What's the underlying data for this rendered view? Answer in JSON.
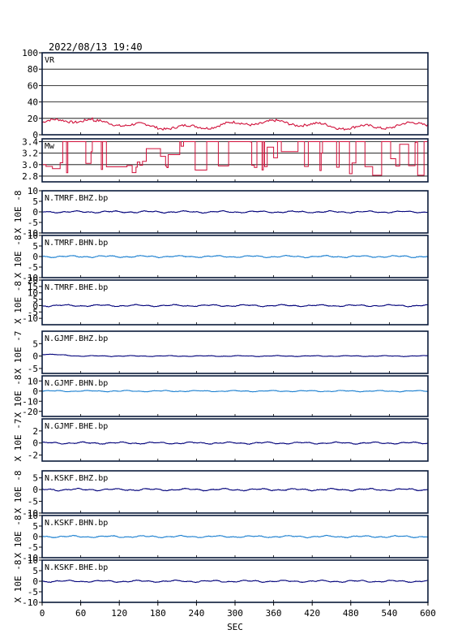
{
  "header": {
    "datetime": "2022/08/13  19:40"
  },
  "chart_data": {
    "type": "line",
    "xlabel": "SEC",
    "xlim": [
      0,
      600
    ],
    "xticks": [
      0,
      60,
      120,
      180,
      240,
      300,
      360,
      420,
      480,
      540,
      600
    ],
    "panels": [
      {
        "name": "VR",
        "ylim": [
          0,
          100
        ],
        "yticks": [
          0,
          20,
          40,
          60,
          80,
          100
        ],
        "ylabel": "",
        "grid": true,
        "color": "#d0103a",
        "kind": "vr",
        "center": 12
      },
      {
        "name": "Mw",
        "ylim": [
          2.7,
          3.45
        ],
        "yticks": [
          2.8,
          3.0,
          3.2,
          3.4
        ],
        "ytick_labels": [
          "2.8",
          "3.0",
          "3.2",
          "3.4"
        ],
        "ylabel": "",
        "grid": true,
        "color": "#d0103a",
        "kind": "step"
      },
      {
        "name": "N.TMRF.BHZ.bp",
        "ylim": [
          -10,
          10
        ],
        "yticks": [
          -10,
          -5,
          0,
          5,
          10
        ],
        "ylabel": "X 10E -8",
        "grid": false,
        "color": "#00007a",
        "kind": "wave",
        "amp": 0.5
      },
      {
        "name": "N.TMRF.BHN.bp",
        "ylim": [
          -10,
          10
        ],
        "yticks": [
          -10,
          -5,
          0,
          5,
          10
        ],
        "ylabel": "X 10E -8",
        "grid": false,
        "color": "#1a7fd0",
        "kind": "wave",
        "amp": 0.5
      },
      {
        "name": "N.TMRF.BHE.bp",
        "ylim": [
          -15,
          20
        ],
        "yticks": [
          -10,
          -5,
          0,
          5,
          10,
          15,
          20
        ],
        "ylabel": "X 10E -8",
        "grid": false,
        "color": "#00007a",
        "kind": "wave",
        "amp": 0.8
      },
      {
        "name": "N.GJMF.BHZ.bp",
        "ylim": [
          -7,
          10
        ],
        "yticks": [
          -5,
          0,
          5
        ],
        "ylabel": "X 10E -7",
        "grid": false,
        "color": "#00007a",
        "kind": "wave",
        "amp": 0.2,
        "early": 0.8
      },
      {
        "name": "N.GJMF.BHN.bp",
        "ylim": [
          -25,
          15
        ],
        "yticks": [
          -20,
          -10,
          0,
          10
        ],
        "ylabel": "X 10E -8",
        "grid": false,
        "color": "#1a7fd0",
        "kind": "wave",
        "amp": 0.7
      },
      {
        "name": "N.GJMF.BHE.bp",
        "ylim": [
          -3,
          4
        ],
        "yticks": [
          -2,
          0,
          2
        ],
        "ylabel": "X 10E -7",
        "grid": false,
        "color": "#00007a",
        "kind": "wave",
        "amp": 0.18
      },
      {
        "name": "N.KSKF.BHZ.bp",
        "ylim": [
          -10,
          8
        ],
        "yticks": [
          -10,
          -5,
          0,
          5
        ],
        "ylabel": "X 10E -8",
        "grid": false,
        "color": "#00007a",
        "kind": "wave",
        "amp": 0.5
      },
      {
        "name": "N.KSKF.BHN.bp",
        "ylim": [
          -10,
          10
        ],
        "yticks": [
          -10,
          -5,
          0,
          5,
          10
        ],
        "ylabel": "X 10E -8",
        "grid": false,
        "color": "#1a7fd0",
        "kind": "wave",
        "amp": 0.5
      },
      {
        "name": "N.KSKF.BHE.bp",
        "ylim": [
          -10,
          10
        ],
        "yticks": [
          -10,
          -5,
          0,
          5,
          10
        ],
        "ylabel": "X 10E -8",
        "grid": false,
        "color": "#00007a",
        "kind": "wave",
        "amp": 0.5
      }
    ]
  }
}
